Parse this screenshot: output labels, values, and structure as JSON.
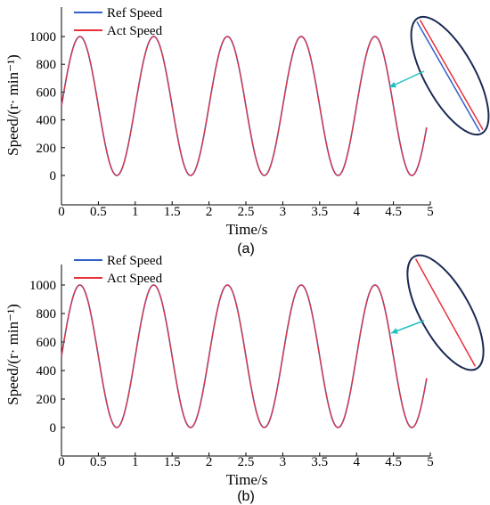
{
  "chart_data": [
    {
      "type": "line",
      "panel_label": "(a)",
      "xlabel": "Time/s",
      "ylabel": "Speed/(r· min⁻¹)",
      "xlim": [
        0,
        5
      ],
      "ylim": [
        -60,
        1100
      ],
      "xticks": [
        "0",
        "0.5",
        "1",
        "1.5",
        "2",
        "2.5",
        "3",
        "3.5",
        "4",
        "4.5",
        "5"
      ],
      "yticks": [
        "0",
        "200",
        "400",
        "600",
        "800",
        "1000"
      ],
      "legend_position": "top-left",
      "series": [
        {
          "name": "Ref Speed",
          "color": "#3060c8",
          "formula": "500 + 500*sin(2*pi*t)",
          "t_range": [
            0,
            4.95
          ]
        },
        {
          "name": "Act Speed",
          "color": "#e8303a",
          "formula": "500 + 500*sin(2*pi*t)",
          "t_range": [
            0,
            4.95
          ]
        }
      ],
      "inset": {
        "type": "zoom-ellipse",
        "description_color": "#1a2a55",
        "arrow_color": "#20c0c0"
      }
    },
    {
      "type": "line",
      "panel_label": "(b)",
      "xlabel": "Time/s",
      "ylabel": "Speed/(r· min⁻¹)",
      "xlim": [
        0,
        5
      ],
      "ylim": [
        -60,
        1100
      ],
      "xticks": [
        "0",
        "0.5",
        "1",
        "1.5",
        "2",
        "2.5",
        "3",
        "3.5",
        "4",
        "4.5",
        "5"
      ],
      "yticks": [
        "0",
        "200",
        "400",
        "600",
        "800",
        "1000"
      ],
      "legend_position": "top-left",
      "series": [
        {
          "name": "Ref Speed",
          "color": "#3060c8",
          "formula": "500 + 500*sin(2*pi*t)",
          "t_range": [
            0,
            4.95
          ]
        },
        {
          "name": "Act Speed",
          "color": "#e8303a",
          "formula": "500 + 500*sin(2*pi*t)",
          "t_range": [
            0,
            4.95
          ]
        }
      ],
      "inset": {
        "type": "zoom-ellipse",
        "description_color": "#1a2a55",
        "arrow_color": "#20c0c0"
      }
    }
  ]
}
